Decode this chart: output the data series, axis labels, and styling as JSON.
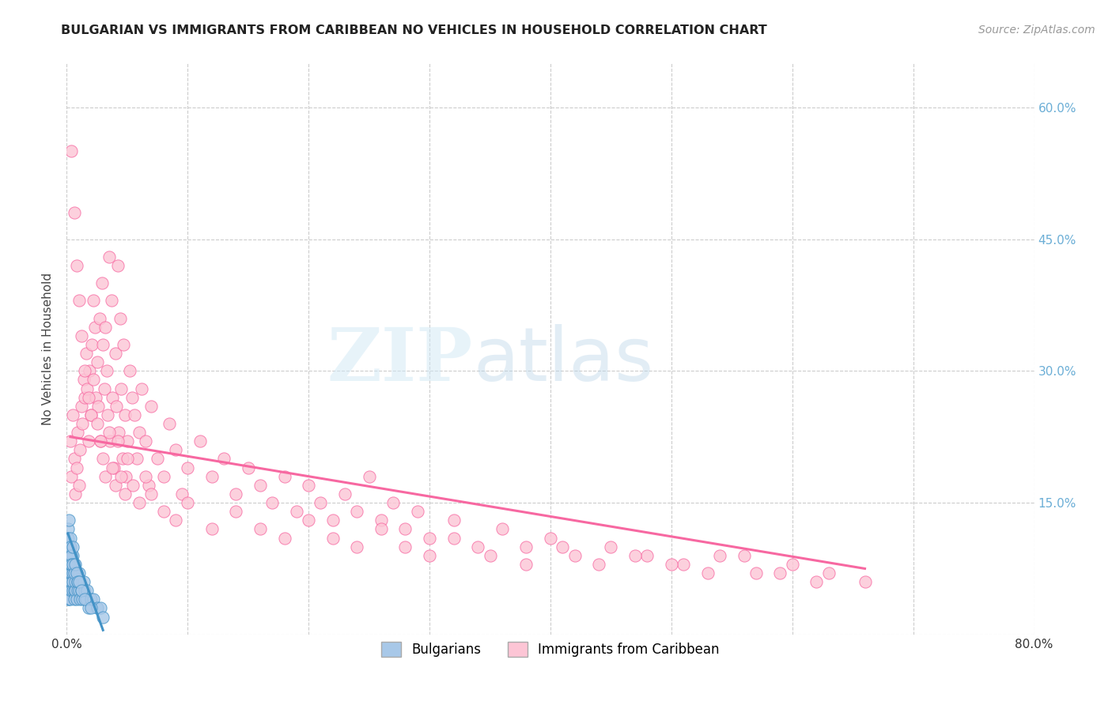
{
  "title": "BULGARIAN VS IMMIGRANTS FROM CARIBBEAN NO VEHICLES IN HOUSEHOLD CORRELATION CHART",
  "source": "Source: ZipAtlas.com",
  "ylabel": "No Vehicles in Household",
  "xlim": [
    0.0,
    0.8
  ],
  "ylim": [
    0.0,
    0.65
  ],
  "xticks": [
    0.0,
    0.1,
    0.2,
    0.3,
    0.4,
    0.5,
    0.6,
    0.7,
    0.8
  ],
  "xticklabels": [
    "0.0%",
    "",
    "",
    "",
    "",
    "",
    "",
    "",
    "80.0%"
  ],
  "yticks_left": [
    0.0,
    0.15,
    0.3,
    0.45,
    0.6
  ],
  "yticks_right": [
    0.0,
    0.15,
    0.3,
    0.45,
    0.6
  ],
  "yticklabels_right": [
    "",
    "15.0%",
    "30.0%",
    "45.0%",
    "60.0%"
  ],
  "blue_scatter_color": "#a8c8e8",
  "blue_edge_color": "#4292c6",
  "pink_scatter_color": "#fcc5d5",
  "pink_edge_color": "#f768a1",
  "trendline_blue": "#4292c6",
  "trendline_pink": "#f768a1",
  "watermark_zip": "ZIP",
  "watermark_atlas": "atlas",
  "background_color": "#ffffff",
  "grid_color": "#cccccc",
  "title_color": "#222222",
  "axis_label_color": "#444444",
  "right_tick_color": "#6baed6",
  "legend_text_color": "#4292c6",
  "bulgarians_scatter_x": [
    0.001,
    0.001,
    0.001,
    0.001,
    0.001,
    0.002,
    0.002,
    0.002,
    0.002,
    0.002,
    0.002,
    0.002,
    0.003,
    0.003,
    0.003,
    0.003,
    0.003,
    0.003,
    0.004,
    0.004,
    0.004,
    0.004,
    0.005,
    0.005,
    0.005,
    0.005,
    0.006,
    0.006,
    0.006,
    0.007,
    0.007,
    0.007,
    0.008,
    0.008,
    0.009,
    0.009,
    0.01,
    0.01,
    0.011,
    0.012,
    0.013,
    0.014,
    0.015,
    0.016,
    0.017,
    0.018,
    0.02,
    0.022,
    0.025,
    0.028,
    0.001,
    0.001,
    0.002,
    0.002,
    0.002,
    0.003,
    0.003,
    0.004,
    0.004,
    0.005,
    0.005,
    0.006,
    0.007,
    0.008,
    0.009,
    0.01,
    0.012,
    0.015,
    0.02,
    0.03
  ],
  "bulgarians_scatter_y": [
    0.05,
    0.06,
    0.04,
    0.08,
    0.07,
    0.06,
    0.05,
    0.08,
    0.1,
    0.07,
    0.09,
    0.04,
    0.06,
    0.07,
    0.05,
    0.09,
    0.08,
    0.04,
    0.06,
    0.07,
    0.05,
    0.08,
    0.07,
    0.05,
    0.09,
    0.06,
    0.05,
    0.08,
    0.04,
    0.07,
    0.05,
    0.06,
    0.04,
    0.07,
    0.05,
    0.06,
    0.05,
    0.07,
    0.04,
    0.05,
    0.04,
    0.06,
    0.05,
    0.04,
    0.05,
    0.03,
    0.04,
    0.04,
    0.03,
    0.03,
    0.12,
    0.11,
    0.1,
    0.13,
    0.09,
    0.11,
    0.1,
    0.09,
    0.08,
    0.1,
    0.08,
    0.07,
    0.08,
    0.07,
    0.06,
    0.06,
    0.05,
    0.04,
    0.03,
    0.02
  ],
  "caribbean_scatter_x": [
    0.003,
    0.004,
    0.005,
    0.006,
    0.007,
    0.008,
    0.009,
    0.01,
    0.011,
    0.012,
    0.013,
    0.014,
    0.015,
    0.016,
    0.017,
    0.018,
    0.019,
    0.02,
    0.021,
    0.022,
    0.023,
    0.024,
    0.025,
    0.026,
    0.027,
    0.028,
    0.029,
    0.03,
    0.031,
    0.032,
    0.033,
    0.034,
    0.035,
    0.036,
    0.037,
    0.038,
    0.039,
    0.04,
    0.041,
    0.042,
    0.043,
    0.044,
    0.045,
    0.046,
    0.047,
    0.048,
    0.049,
    0.05,
    0.052,
    0.054,
    0.056,
    0.058,
    0.06,
    0.062,
    0.065,
    0.068,
    0.07,
    0.075,
    0.08,
    0.085,
    0.09,
    0.095,
    0.1,
    0.11,
    0.12,
    0.13,
    0.14,
    0.15,
    0.16,
    0.17,
    0.18,
    0.19,
    0.2,
    0.21,
    0.22,
    0.23,
    0.24,
    0.25,
    0.26,
    0.27,
    0.28,
    0.29,
    0.3,
    0.32,
    0.34,
    0.36,
    0.38,
    0.4,
    0.42,
    0.45,
    0.48,
    0.51,
    0.54,
    0.57,
    0.6,
    0.63,
    0.66,
    0.004,
    0.006,
    0.008,
    0.01,
    0.012,
    0.015,
    0.018,
    0.02,
    0.022,
    0.025,
    0.028,
    0.03,
    0.032,
    0.035,
    0.038,
    0.04,
    0.042,
    0.045,
    0.048,
    0.05,
    0.055,
    0.06,
    0.065,
    0.07,
    0.08,
    0.09,
    0.1,
    0.12,
    0.14,
    0.16,
    0.18,
    0.2,
    0.22,
    0.24,
    0.26,
    0.28,
    0.3,
    0.32,
    0.35,
    0.38,
    0.41,
    0.44,
    0.47,
    0.5,
    0.53,
    0.56,
    0.59,
    0.62
  ],
  "caribbean_scatter_y": [
    0.22,
    0.18,
    0.25,
    0.2,
    0.16,
    0.19,
    0.23,
    0.17,
    0.21,
    0.26,
    0.24,
    0.29,
    0.27,
    0.32,
    0.28,
    0.22,
    0.3,
    0.25,
    0.33,
    0.38,
    0.35,
    0.27,
    0.31,
    0.26,
    0.36,
    0.22,
    0.4,
    0.33,
    0.28,
    0.35,
    0.3,
    0.25,
    0.43,
    0.22,
    0.38,
    0.27,
    0.19,
    0.32,
    0.26,
    0.42,
    0.23,
    0.36,
    0.28,
    0.2,
    0.33,
    0.25,
    0.18,
    0.22,
    0.3,
    0.27,
    0.25,
    0.2,
    0.23,
    0.28,
    0.22,
    0.17,
    0.26,
    0.2,
    0.18,
    0.24,
    0.21,
    0.16,
    0.19,
    0.22,
    0.18,
    0.2,
    0.16,
    0.19,
    0.17,
    0.15,
    0.18,
    0.14,
    0.17,
    0.15,
    0.13,
    0.16,
    0.14,
    0.18,
    0.13,
    0.15,
    0.12,
    0.14,
    0.11,
    0.13,
    0.1,
    0.12,
    0.1,
    0.11,
    0.09,
    0.1,
    0.09,
    0.08,
    0.09,
    0.07,
    0.08,
    0.07,
    0.06,
    0.55,
    0.48,
    0.42,
    0.38,
    0.34,
    0.3,
    0.27,
    0.25,
    0.29,
    0.24,
    0.22,
    0.2,
    0.18,
    0.23,
    0.19,
    0.17,
    0.22,
    0.18,
    0.16,
    0.2,
    0.17,
    0.15,
    0.18,
    0.16,
    0.14,
    0.13,
    0.15,
    0.12,
    0.14,
    0.12,
    0.11,
    0.13,
    0.11,
    0.1,
    0.12,
    0.1,
    0.09,
    0.11,
    0.09,
    0.08,
    0.1,
    0.08,
    0.09,
    0.08,
    0.07,
    0.09,
    0.07,
    0.06
  ],
  "blue_trendline_x": [
    0.001,
    0.03
  ],
  "blue_trendline_y": [
    0.115,
    0.005
  ],
  "pink_trendline_x": [
    0.003,
    0.66
  ],
  "pink_trendline_y": [
    0.225,
    0.075
  ]
}
